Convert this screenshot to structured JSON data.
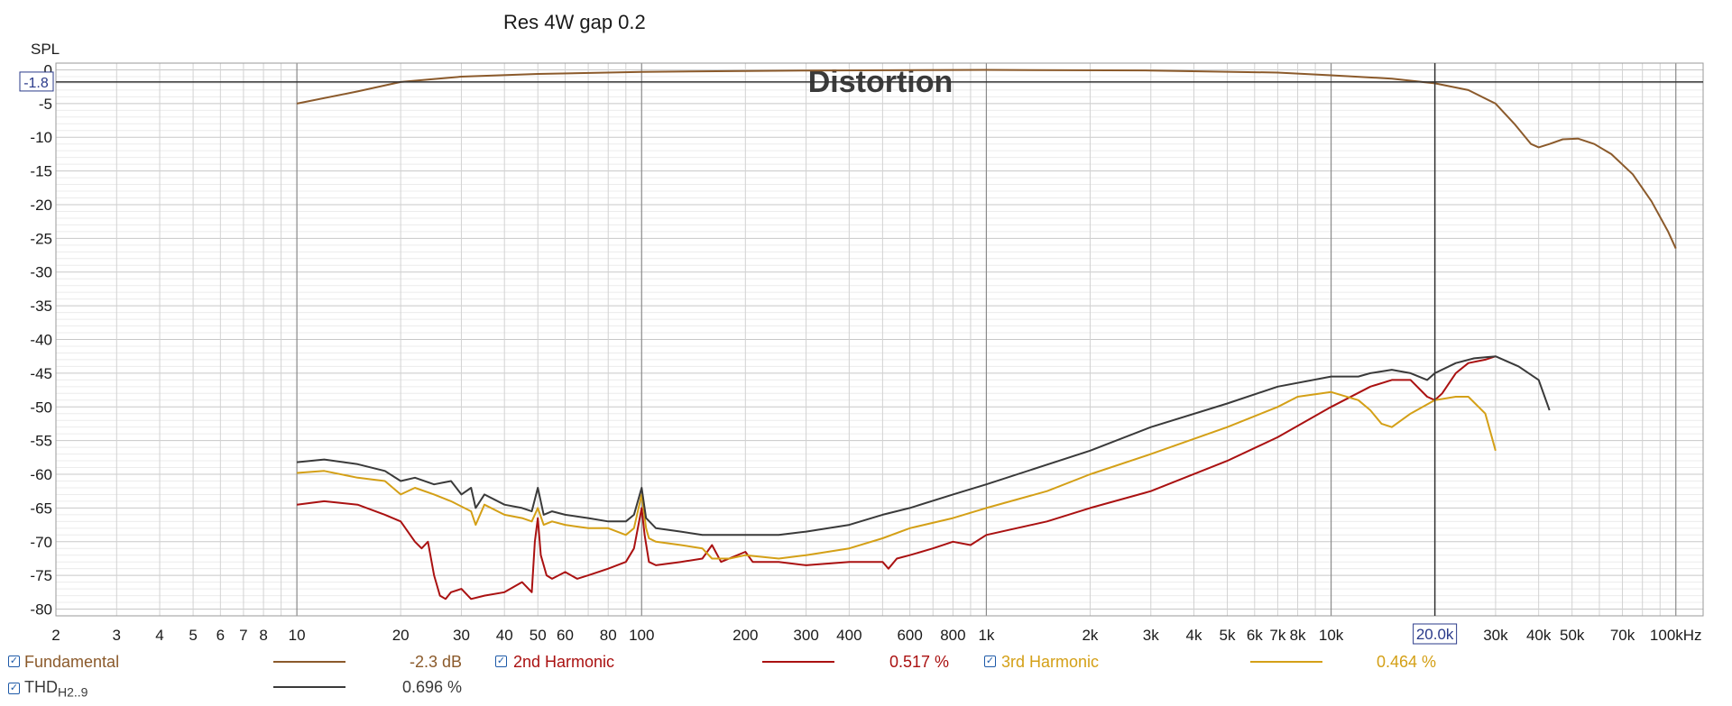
{
  "chart_data": {
    "type": "line",
    "title": "Res 4W gap 0.2",
    "watermark": "Distortion",
    "ylabel": "SPL",
    "x_scale": "log",
    "xlim": [
      2,
      120000
    ],
    "ylim": [
      -81,
      1
    ],
    "grid": true,
    "y_ticks": [
      {
        "v": 0,
        "label": "0"
      },
      {
        "v": -5,
        "label": "-5"
      },
      {
        "v": -10,
        "label": "-10"
      },
      {
        "v": -15,
        "label": "-15"
      },
      {
        "v": -20,
        "label": "-20"
      },
      {
        "v": -25,
        "label": "-25"
      },
      {
        "v": -30,
        "label": "-30"
      },
      {
        "v": -35,
        "label": "-35"
      },
      {
        "v": -40,
        "label": "-40"
      },
      {
        "v": -45,
        "label": "-45"
      },
      {
        "v": -50,
        "label": "-50"
      },
      {
        "v": -55,
        "label": "-55"
      },
      {
        "v": -60,
        "label": "-60"
      },
      {
        "v": -65,
        "label": "-65"
      },
      {
        "v": -70,
        "label": "-70"
      },
      {
        "v": -75,
        "label": "-75"
      },
      {
        "v": -80,
        "label": "-80"
      }
    ],
    "x_ticks": [
      {
        "v": 2,
        "label": "2"
      },
      {
        "v": 3,
        "label": "3"
      },
      {
        "v": 4,
        "label": "4"
      },
      {
        "v": 5,
        "label": "5"
      },
      {
        "v": 6,
        "label": "6"
      },
      {
        "v": 7,
        "label": "7"
      },
      {
        "v": 8,
        "label": "8"
      },
      {
        "v": 10,
        "label": "10"
      },
      {
        "v": 20,
        "label": "20"
      },
      {
        "v": 30,
        "label": "30"
      },
      {
        "v": 40,
        "label": "40"
      },
      {
        "v": 50,
        "label": "50"
      },
      {
        "v": 60,
        "label": "60"
      },
      {
        "v": 80,
        "label": "80"
      },
      {
        "v": 100,
        "label": "100"
      },
      {
        "v": 200,
        "label": "200"
      },
      {
        "v": 300,
        "label": "300"
      },
      {
        "v": 400,
        "label": "400"
      },
      {
        "v": 600,
        "label": "600"
      },
      {
        "v": 800,
        "label": "800"
      },
      {
        "v": 1000,
        "label": "1k"
      },
      {
        "v": 2000,
        "label": "2k"
      },
      {
        "v": 3000,
        "label": "3k"
      },
      {
        "v": 4000,
        "label": "4k"
      },
      {
        "v": 5000,
        "label": "5k"
      },
      {
        "v": 6000,
        "label": "6k"
      },
      {
        "v": 7000,
        "label": "7k"
      },
      {
        "v": 8000,
        "label": "8k"
      },
      {
        "v": 10000,
        "label": "10k"
      },
      {
        "v": 30000,
        "label": "30k"
      },
      {
        "v": 40000,
        "label": "40k"
      },
      {
        "v": 50000,
        "label": "50k"
      },
      {
        "v": 70000,
        "label": "70k"
      },
      {
        "v": 100000,
        "label": "100kHz"
      }
    ],
    "cursor": {
      "x": 20000,
      "x_label": "20.0k",
      "y": -1.8,
      "y_label": "-1.8"
    },
    "series": [
      {
        "name": "Fundamental",
        "value": "-2.3 dB",
        "color": "#8b5a2b",
        "points": [
          [
            10,
            -5
          ],
          [
            15,
            -3.2
          ],
          [
            20,
            -1.8
          ],
          [
            30,
            -1.0
          ],
          [
            50,
            -0.6
          ],
          [
            100,
            -0.3
          ],
          [
            300,
            -0.1
          ],
          [
            1000,
            0
          ],
          [
            3000,
            -0.1
          ],
          [
            7000,
            -0.4
          ],
          [
            10000,
            -0.8
          ],
          [
            15000,
            -1.3
          ],
          [
            20000,
            -2
          ],
          [
            25000,
            -3
          ],
          [
            30000,
            -5
          ],
          [
            34000,
            -8
          ],
          [
            38000,
            -11
          ],
          [
            40000,
            -11.5
          ],
          [
            43000,
            -11
          ],
          [
            47000,
            -10.3
          ],
          [
            52000,
            -10.2
          ],
          [
            58000,
            -11
          ],
          [
            65000,
            -12.5
          ],
          [
            75000,
            -15.5
          ],
          [
            85000,
            -19.5
          ],
          [
            95000,
            -24
          ],
          [
            100000,
            -26.5
          ]
        ]
      },
      {
        "name": "2nd Harmonic",
        "value": "0.517 %",
        "color": "#aa1111",
        "points": [
          [
            10,
            -64.5
          ],
          [
            12,
            -64
          ],
          [
            15,
            -64.5
          ],
          [
            18,
            -66
          ],
          [
            20,
            -67
          ],
          [
            22,
            -70
          ],
          [
            23,
            -71
          ],
          [
            24,
            -70
          ],
          [
            25,
            -75
          ],
          [
            26,
            -78
          ],
          [
            27,
            -78.5
          ],
          [
            28,
            -77.5
          ],
          [
            30,
            -77
          ],
          [
            32,
            -78.5
          ],
          [
            35,
            -78
          ],
          [
            40,
            -77.5
          ],
          [
            45,
            -76
          ],
          [
            48,
            -77.5
          ],
          [
            49,
            -70
          ],
          [
            50,
            -66.5
          ],
          [
            51,
            -72
          ],
          [
            53,
            -75
          ],
          [
            55,
            -75.5
          ],
          [
            60,
            -74.5
          ],
          [
            65,
            -75.5
          ],
          [
            70,
            -75
          ],
          [
            80,
            -74
          ],
          [
            90,
            -73
          ],
          [
            95,
            -71
          ],
          [
            100,
            -65
          ],
          [
            102,
            -69
          ],
          [
            105,
            -73
          ],
          [
            110,
            -73.5
          ],
          [
            130,
            -73
          ],
          [
            150,
            -72.5
          ],
          [
            160,
            -70.5
          ],
          [
            170,
            -73
          ],
          [
            200,
            -71.5
          ],
          [
            210,
            -73
          ],
          [
            250,
            -73
          ],
          [
            300,
            -73.5
          ],
          [
            400,
            -73
          ],
          [
            500,
            -73
          ],
          [
            520,
            -74
          ],
          [
            550,
            -72.5
          ],
          [
            600,
            -72
          ],
          [
            700,
            -71
          ],
          [
            800,
            -70
          ],
          [
            900,
            -70.5
          ],
          [
            1000,
            -69
          ],
          [
            1500,
            -67
          ],
          [
            2000,
            -65
          ],
          [
            3000,
            -62.5
          ],
          [
            5000,
            -58
          ],
          [
            7000,
            -54.5
          ],
          [
            10000,
            -50
          ],
          [
            13000,
            -47
          ],
          [
            15000,
            -46
          ],
          [
            17000,
            -46
          ],
          [
            19000,
            -48.5
          ],
          [
            20000,
            -49
          ],
          [
            21000,
            -48
          ],
          [
            23000,
            -45
          ],
          [
            25000,
            -43.5
          ],
          [
            28000,
            -43
          ],
          [
            30000,
            -42.5
          ]
        ]
      },
      {
        "name": "3rd Harmonic",
        "value": "0.464 %",
        "color": "#d4a017",
        "points": [
          [
            10,
            -59.8
          ],
          [
            12,
            -59.5
          ],
          [
            15,
            -60.5
          ],
          [
            18,
            -61
          ],
          [
            20,
            -63
          ],
          [
            22,
            -62
          ],
          [
            25,
            -63
          ],
          [
            28,
            -64
          ],
          [
            32,
            -65.5
          ],
          [
            33,
            -67.5
          ],
          [
            35,
            -64.5
          ],
          [
            40,
            -66
          ],
          [
            45,
            -66.5
          ],
          [
            48,
            -67
          ],
          [
            50,
            -65
          ],
          [
            52,
            -67.5
          ],
          [
            55,
            -67
          ],
          [
            60,
            -67.5
          ],
          [
            70,
            -68
          ],
          [
            80,
            -68
          ],
          [
            90,
            -69
          ],
          [
            95,
            -68
          ],
          [
            100,
            -63
          ],
          [
            103,
            -68
          ],
          [
            105,
            -69.5
          ],
          [
            110,
            -70
          ],
          [
            130,
            -70.5
          ],
          [
            150,
            -71
          ],
          [
            160,
            -72.5
          ],
          [
            180,
            -72.5
          ],
          [
            200,
            -72
          ],
          [
            250,
            -72.5
          ],
          [
            300,
            -72
          ],
          [
            400,
            -71
          ],
          [
            500,
            -69.5
          ],
          [
            600,
            -68
          ],
          [
            800,
            -66.5
          ],
          [
            1000,
            -65
          ],
          [
            1500,
            -62.5
          ],
          [
            2000,
            -60
          ],
          [
            3000,
            -57
          ],
          [
            5000,
            -53
          ],
          [
            7000,
            -50
          ],
          [
            8000,
            -48.5
          ],
          [
            10000,
            -47.8
          ],
          [
            12000,
            -49
          ],
          [
            13000,
            -50.5
          ],
          [
            14000,
            -52.5
          ],
          [
            15000,
            -53
          ],
          [
            17000,
            -51
          ],
          [
            20000,
            -49
          ],
          [
            23000,
            -48.5
          ],
          [
            25000,
            -48.5
          ],
          [
            28000,
            -51
          ],
          [
            30000,
            -56.5
          ]
        ]
      },
      {
        "name": "THD",
        "name_sub": "H2..9",
        "value": "0.696 %",
        "color": "#3a3a3a",
        "points": [
          [
            10,
            -58.2
          ],
          [
            12,
            -57.8
          ],
          [
            15,
            -58.5
          ],
          [
            18,
            -59.5
          ],
          [
            20,
            -61
          ],
          [
            22,
            -60.5
          ],
          [
            25,
            -61.5
          ],
          [
            28,
            -61
          ],
          [
            30,
            -63
          ],
          [
            32,
            -62
          ],
          [
            33,
            -65
          ],
          [
            35,
            -63
          ],
          [
            40,
            -64.5
          ],
          [
            45,
            -65
          ],
          [
            48,
            -65.5
          ],
          [
            50,
            -62
          ],
          [
            52,
            -66
          ],
          [
            55,
            -65.5
          ],
          [
            60,
            -66
          ],
          [
            70,
            -66.5
          ],
          [
            80,
            -67
          ],
          [
            90,
            -67
          ],
          [
            95,
            -66
          ],
          [
            100,
            -62
          ],
          [
            103,
            -66.5
          ],
          [
            110,
            -68
          ],
          [
            130,
            -68.5
          ],
          [
            150,
            -69
          ],
          [
            200,
            -69
          ],
          [
            250,
            -69
          ],
          [
            300,
            -68.5
          ],
          [
            400,
            -67.5
          ],
          [
            500,
            -66
          ],
          [
            600,
            -65
          ],
          [
            800,
            -63
          ],
          [
            1000,
            -61.5
          ],
          [
            2000,
            -56.5
          ],
          [
            3000,
            -53
          ],
          [
            5000,
            -49.5
          ],
          [
            7000,
            -47
          ],
          [
            10000,
            -45.5
          ],
          [
            12000,
            -45.5
          ],
          [
            13000,
            -45
          ],
          [
            15000,
            -44.5
          ],
          [
            17000,
            -45
          ],
          [
            19000,
            -46
          ],
          [
            20000,
            -45
          ],
          [
            23000,
            -43.5
          ],
          [
            26000,
            -42.8
          ],
          [
            30000,
            -42.5
          ],
          [
            35000,
            -44
          ],
          [
            40000,
            -46
          ],
          [
            43000,
            -50.5
          ]
        ]
      }
    ]
  }
}
